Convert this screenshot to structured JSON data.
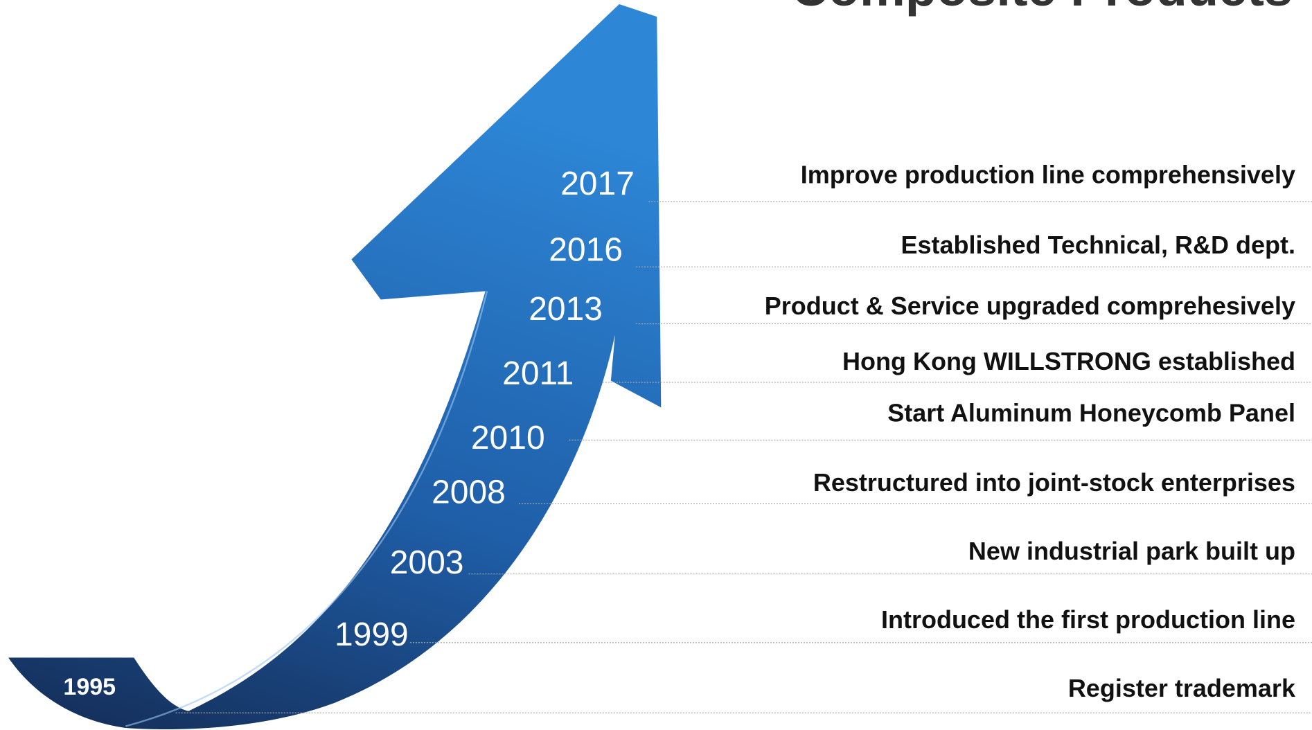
{
  "header": {
    "title": "Composite Products"
  },
  "events": [
    {
      "year": "2017",
      "text": "Improve production line comprehensively"
    },
    {
      "year": "2016",
      "text": "Established Technical, R&D dept."
    },
    {
      "year": "2013",
      "text": "Product & Service upgraded comprehesively"
    },
    {
      "year": "2011",
      "text": "Hong Kong WILLSTRONG established"
    },
    {
      "year": "2010",
      "text": "Start Aluminum Honeycomb Panel"
    },
    {
      "year": "2008",
      "text": "Restructured into joint-stock enterprises"
    },
    {
      "year": "2003",
      "text": "New industrial park built up"
    },
    {
      "year": "1999",
      "text": "Introduced the first production line"
    },
    {
      "year": "1995",
      "text": "Register trademark"
    }
  ]
}
